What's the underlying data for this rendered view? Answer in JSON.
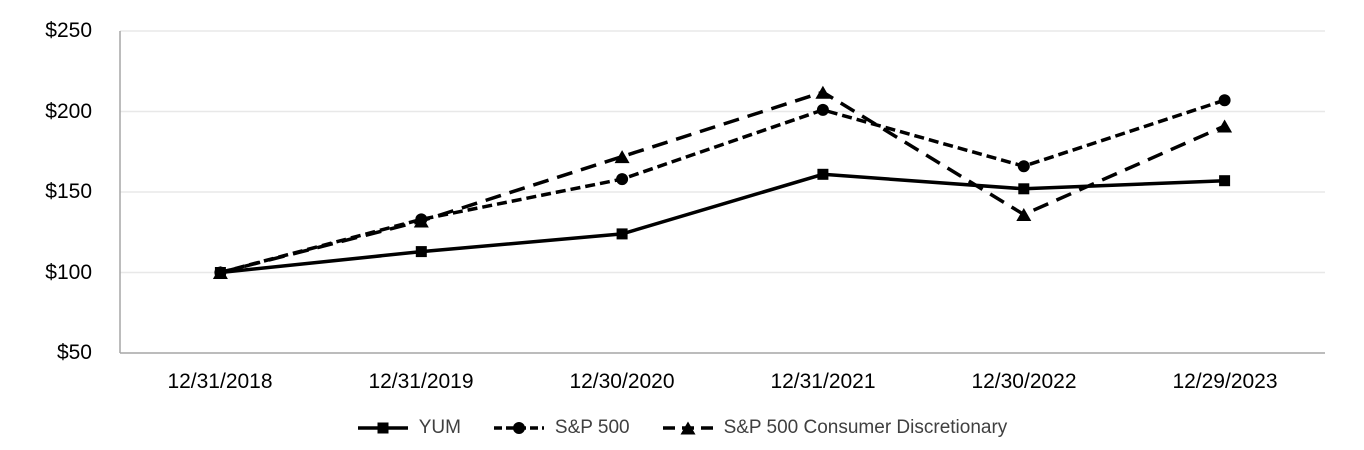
{
  "chart_data": {
    "type": "line",
    "title": "",
    "xlabel": "",
    "ylabel": "",
    "categories": [
      "12/31/2018",
      "12/31/2019",
      "12/30/2020",
      "12/31/2021",
      "12/30/2022",
      "12/29/2023"
    ],
    "series": [
      {
        "name": "YUM",
        "values": [
          100,
          113,
          124,
          161,
          152,
          157
        ],
        "line_style": "solid",
        "marker": "square",
        "color": "#000000"
      },
      {
        "name": "S&P 500",
        "values": [
          100,
          133,
          158,
          201,
          166,
          207
        ],
        "line_style": "dashed",
        "marker": "circle",
        "color": "#000000"
      },
      {
        "name": "S&P 500 Consumer Discretionary",
        "values": [
          100,
          132,
          172,
          212,
          136,
          191
        ],
        "line_style": "long-dashed",
        "marker": "triangle",
        "color": "#000000"
      }
    ],
    "ylim": [
      50,
      250
    ],
    "y_tick_values": [
      250,
      200,
      150,
      100,
      50
    ],
    "y_tick_labels": [
      "$250",
      "$200",
      "$150",
      "$100",
      "$50"
    ],
    "grid": true,
    "legend_position": "bottom",
    "colors": {
      "grid": "#e8e8e8",
      "axis": "#a6a6a6",
      "axis_text": "#000000",
      "legend_text": "#404040",
      "background": "#ffffff"
    }
  }
}
